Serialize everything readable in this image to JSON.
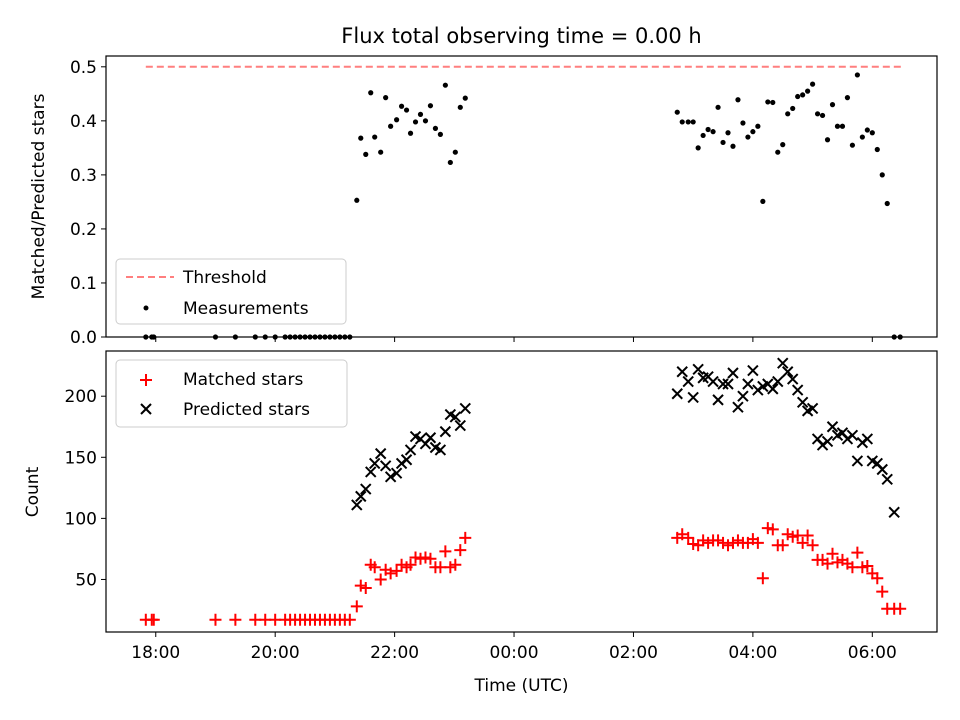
{
  "colors": {
    "threshold": "#ff7f7f",
    "measurements": "#000000",
    "matched": "#ff0000",
    "predicted": "#000000"
  },
  "chart_data": [
    {
      "type": "scatter",
      "title": "Flux total observing time = 0.00 h",
      "ylabel": "Matched/Predicted stars",
      "ylim": [
        0,
        0.52
      ],
      "yticks": [
        0.0,
        0.1,
        0.2,
        0.3,
        0.4,
        0.5
      ],
      "ytick_labels": [
        "0.0",
        "0.1",
        "0.2",
        "0.3",
        "0.4",
        "0.5"
      ],
      "xlim": [
        "17:10",
        "07:05"
      ],
      "legend": {
        "placement": "lower-left",
        "entries": [
          "Threshold",
          "Measurements"
        ]
      },
      "series": [
        {
          "name": "Threshold",
          "kind": "dashed-line",
          "x": [
            "17:50",
            "06:30"
          ],
          "y": [
            0.5,
            0.5
          ]
        },
        {
          "name": "Measurements",
          "kind": "points",
          "points": [
            [
              "17:50",
              0
            ],
            [
              "17:56",
              0
            ],
            [
              "17:58",
              0
            ],
            [
              "19:00",
              0
            ],
            [
              "19:20",
              0
            ],
            [
              "19:40",
              0
            ],
            [
              "19:50",
              0
            ],
            [
              "20:00",
              0
            ],
            [
              "20:10",
              0
            ],
            [
              "20:15",
              0
            ],
            [
              "20:20",
              0
            ],
            [
              "20:25",
              0
            ],
            [
              "20:30",
              0
            ],
            [
              "20:35",
              0
            ],
            [
              "20:40",
              0
            ],
            [
              "20:45",
              0
            ],
            [
              "20:50",
              0
            ],
            [
              "20:55",
              0
            ],
            [
              "21:00",
              0
            ],
            [
              "21:05",
              0
            ],
            [
              "21:10",
              0
            ],
            [
              "21:15",
              0
            ],
            [
              "21:22",
              0.253
            ],
            [
              "21:26",
              0.368
            ],
            [
              "21:31",
              0.338
            ],
            [
              "21:36",
              0.452
            ],
            [
              "21:40",
              0.37
            ],
            [
              "21:46",
              0.342
            ],
            [
              "21:51",
              0.443
            ],
            [
              "21:56",
              0.39
            ],
            [
              "22:02",
              0.402
            ],
            [
              "22:07",
              0.427
            ],
            [
              "22:12",
              0.42
            ],
            [
              "22:16",
              0.377
            ],
            [
              "22:21",
              0.398
            ],
            [
              "22:26",
              0.412
            ],
            [
              "22:31",
              0.4
            ],
            [
              "22:36",
              0.428
            ],
            [
              "22:41",
              0.386
            ],
            [
              "22:46",
              0.375
            ],
            [
              "22:51",
              0.466
            ],
            [
              "22:56",
              0.323
            ],
            [
              "23:01",
              0.342
            ],
            [
              "23:06",
              0.425
            ],
            [
              "23:11",
              0.442
            ],
            [
              "02:44",
              0.416
            ],
            [
              "02:49",
              0.398
            ],
            [
              "02:55",
              0.398
            ],
            [
              "03:00",
              0.398
            ],
            [
              "03:05",
              0.35
            ],
            [
              "03:10",
              0.373
            ],
            [
              "03:15",
              0.384
            ],
            [
              "03:20",
              0.38
            ],
            [
              "03:25",
              0.425
            ],
            [
              "03:30",
              0.36
            ],
            [
              "03:35",
              0.378
            ],
            [
              "03:40",
              0.353
            ],
            [
              "03:45",
              0.439
            ],
            [
              "03:50",
              0.396
            ],
            [
              "03:55",
              0.37
            ],
            [
              "04:00",
              0.38
            ],
            [
              "04:05",
              0.39
            ],
            [
              "04:10",
              0.251
            ],
            [
              "04:15",
              0.435
            ],
            [
              "04:20",
              0.434
            ],
            [
              "04:25",
              0.342
            ],
            [
              "04:30",
              0.356
            ],
            [
              "04:35",
              0.413
            ],
            [
              "04:40",
              0.423
            ],
            [
              "04:45",
              0.445
            ],
            [
              "04:50",
              0.448
            ],
            [
              "04:55",
              0.455
            ],
            [
              "05:00",
              0.468
            ],
            [
              "05:05",
              0.413
            ],
            [
              "05:10",
              0.41
            ],
            [
              "05:15",
              0.365
            ],
            [
              "05:20",
              0.43
            ],
            [
              "05:25",
              0.39
            ],
            [
              "05:30",
              0.39
            ],
            [
              "05:35",
              0.443
            ],
            [
              "05:40",
              0.355
            ],
            [
              "05:45",
              0.485
            ],
            [
              "05:50",
              0.37
            ],
            [
              "05:55",
              0.383
            ],
            [
              "06:00",
              0.378
            ],
            [
              "06:05",
              0.347
            ],
            [
              "06:10",
              0.3
            ],
            [
              "06:15",
              0.247
            ],
            [
              "06:22",
              0
            ],
            [
              "06:28",
              0
            ]
          ]
        }
      ]
    },
    {
      "type": "scatter",
      "xlabel": "Time (UTC)",
      "ylabel": "Count",
      "ylim": [
        7,
        237
      ],
      "yticks": [
        50,
        100,
        150,
        200
      ],
      "ytick_labels": [
        "50",
        "100",
        "150",
        "200"
      ],
      "xticks": [
        "18:00",
        "20:00",
        "22:00",
        "00:00",
        "02:00",
        "04:00",
        "06:00"
      ],
      "xlim": [
        "17:10",
        "07:05"
      ],
      "legend": {
        "placement": "upper-left",
        "entries": [
          "Matched stars",
          "Predicted stars"
        ]
      },
      "series": [
        {
          "name": "Matched stars",
          "marker": "plus",
          "points": [
            [
              "17:50",
              17
            ],
            [
              "17:56",
              17
            ],
            [
              "17:58",
              17
            ],
            [
              "19:00",
              17
            ],
            [
              "19:20",
              17
            ],
            [
              "19:40",
              17
            ],
            [
              "19:50",
              17
            ],
            [
              "20:00",
              17
            ],
            [
              "20:10",
              17
            ],
            [
              "20:15",
              17
            ],
            [
              "20:20",
              17
            ],
            [
              "20:25",
              17
            ],
            [
              "20:30",
              17
            ],
            [
              "20:35",
              17
            ],
            [
              "20:40",
              17
            ],
            [
              "20:45",
              17
            ],
            [
              "20:50",
              17
            ],
            [
              "20:55",
              17
            ],
            [
              "21:00",
              17
            ],
            [
              "21:05",
              17
            ],
            [
              "21:10",
              17
            ],
            [
              "21:15",
              17
            ],
            [
              "21:22",
              28
            ],
            [
              "21:26",
              45
            ],
            [
              "21:31",
              43
            ],
            [
              "21:36",
              62
            ],
            [
              "21:40",
              60
            ],
            [
              "21:46",
              50
            ],
            [
              "21:51",
              58
            ],
            [
              "21:56",
              55
            ],
            [
              "22:02",
              57
            ],
            [
              "22:07",
              62
            ],
            [
              "22:12",
              60
            ],
            [
              "22:16",
              62
            ],
            [
              "22:21",
              68
            ],
            [
              "22:26",
              67
            ],
            [
              "22:31",
              68
            ],
            [
              "22:36",
              67
            ],
            [
              "22:41",
              60
            ],
            [
              "22:46",
              60
            ],
            [
              "22:51",
              73
            ],
            [
              "22:56",
              60
            ],
            [
              "23:01",
              62
            ],
            [
              "23:06",
              74
            ],
            [
              "23:11",
              84
            ],
            [
              "02:44",
              84
            ],
            [
              "02:49",
              87
            ],
            [
              "02:55",
              84
            ],
            [
              "03:00",
              79
            ],
            [
              "03:05",
              78
            ],
            [
              "03:10",
              82
            ],
            [
              "03:15",
              80
            ],
            [
              "03:20",
              82
            ],
            [
              "03:25",
              82
            ],
            [
              "03:30",
              80
            ],
            [
              "03:35",
              78
            ],
            [
              "03:40",
              80
            ],
            [
              "03:45",
              82
            ],
            [
              "03:50",
              80
            ],
            [
              "03:55",
              80
            ],
            [
              "04:00",
              83
            ],
            [
              "04:05",
              80
            ],
            [
              "04:10",
              51
            ],
            [
              "04:15",
              92
            ],
            [
              "04:20",
              91
            ],
            [
              "04:25",
              78
            ],
            [
              "04:30",
              78
            ],
            [
              "04:35",
              87
            ],
            [
              "04:40",
              85
            ],
            [
              "04:45",
              86
            ],
            [
              "04:50",
              80
            ],
            [
              "04:55",
              86
            ],
            [
              "05:00",
              78
            ],
            [
              "05:05",
              66
            ],
            [
              "05:10",
              66
            ],
            [
              "05:15",
              63
            ],
            [
              "05:20",
              71
            ],
            [
              "05:25",
              64
            ],
            [
              "05:30",
              66
            ],
            [
              "05:35",
              63
            ],
            [
              "05:40",
              60
            ],
            [
              "05:45",
              72
            ],
            [
              "05:50",
              60
            ],
            [
              "05:55",
              61
            ],
            [
              "06:00",
              55
            ],
            [
              "06:05",
              51
            ],
            [
              "06:10",
              40
            ],
            [
              "06:15",
              26
            ],
            [
              "06:22",
              26
            ],
            [
              "06:28",
              26
            ]
          ]
        },
        {
          "name": "Predicted stars",
          "marker": "x",
          "points": [
            [
              "21:22",
              111
            ],
            [
              "21:26",
              118
            ],
            [
              "21:31",
              124
            ],
            [
              "21:36",
              138
            ],
            [
              "21:40",
              145
            ],
            [
              "21:46",
              153
            ],
            [
              "21:51",
              143
            ],
            [
              "21:56",
              134
            ],
            [
              "22:02",
              137
            ],
            [
              "22:07",
              145
            ],
            [
              "22:12",
              148
            ],
            [
              "22:16",
              156
            ],
            [
              "22:21",
              167
            ],
            [
              "22:26",
              165
            ],
            [
              "22:31",
              161
            ],
            [
              "22:36",
              166
            ],
            [
              "22:41",
              158
            ],
            [
              "22:46",
              156
            ],
            [
              "22:51",
              171
            ],
            [
              "22:56",
              185
            ],
            [
              "23:01",
              183
            ],
            [
              "23:06",
              176
            ],
            [
              "23:11",
              190
            ],
            [
              "02:44",
              202
            ],
            [
              "02:49",
              220
            ],
            [
              "02:55",
              212
            ],
            [
              "03:00",
              199
            ],
            [
              "03:05",
              222
            ],
            [
              "03:10",
              215
            ],
            [
              "03:15",
              216
            ],
            [
              "03:20",
              212
            ],
            [
              "03:25",
              197
            ],
            [
              "03:30",
              210
            ],
            [
              "03:35",
              210
            ],
            [
              "03:40",
              219
            ],
            [
              "03:45",
              191
            ],
            [
              "03:50",
              200
            ],
            [
              "03:55",
              210
            ],
            [
              "04:00",
              221
            ],
            [
              "04:05",
              205
            ],
            [
              "04:10",
              208
            ],
            [
              "04:15",
              210
            ],
            [
              "04:20",
              206
            ],
            [
              "04:25",
              212
            ],
            [
              "04:30",
              227
            ],
            [
              "04:35",
              220
            ],
            [
              "04:40",
              214
            ],
            [
              "04:45",
              205
            ],
            [
              "04:50",
              195
            ],
            [
              "04:55",
              188
            ],
            [
              "05:00",
              190
            ],
            [
              "05:05",
              165
            ],
            [
              "05:10",
              160
            ],
            [
              "05:15",
              163
            ],
            [
              "05:20",
              175
            ],
            [
              "05:25",
              168
            ],
            [
              "05:30",
              170
            ],
            [
              "05:35",
              165
            ],
            [
              "05:40",
              168
            ],
            [
              "05:45",
              147
            ],
            [
              "05:50",
              162
            ],
            [
              "05:55",
              165
            ],
            [
              "06:00",
              147
            ],
            [
              "06:05",
              145
            ],
            [
              "06:10",
              140
            ],
            [
              "06:15",
              132
            ],
            [
              "06:22",
              105
            ]
          ]
        }
      ]
    }
  ]
}
